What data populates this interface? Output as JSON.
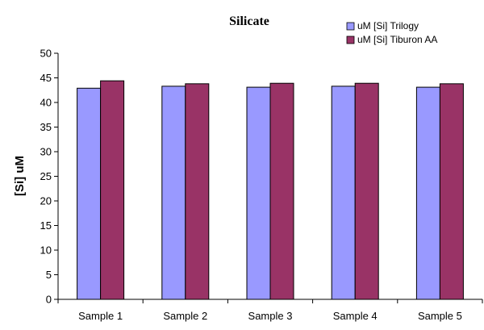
{
  "chart_data": {
    "type": "bar",
    "title": "Silicate",
    "xlabel": "",
    "ylabel": "[Si] uM",
    "categories": [
      "Sample 1",
      "Sample 2",
      "Sample 3",
      "Sample 4",
      "Sample 5"
    ],
    "series": [
      {
        "name": "uM [Si] Trilogy",
        "color": "#9999ff",
        "values": [
          42.9,
          43.3,
          43.1,
          43.3,
          43.1
        ]
      },
      {
        "name": "uM [Si] Tiburon AA",
        "color": "#993366",
        "values": [
          44.4,
          43.8,
          43.9,
          43.9,
          43.8
        ]
      }
    ],
    "ylim": [
      0,
      50
    ],
    "yticks": [
      "0",
      "5",
      "10",
      "15",
      "20",
      "25",
      "30",
      "35",
      "40",
      "45",
      "50"
    ],
    "grid": false,
    "legend_position": "top-right"
  }
}
